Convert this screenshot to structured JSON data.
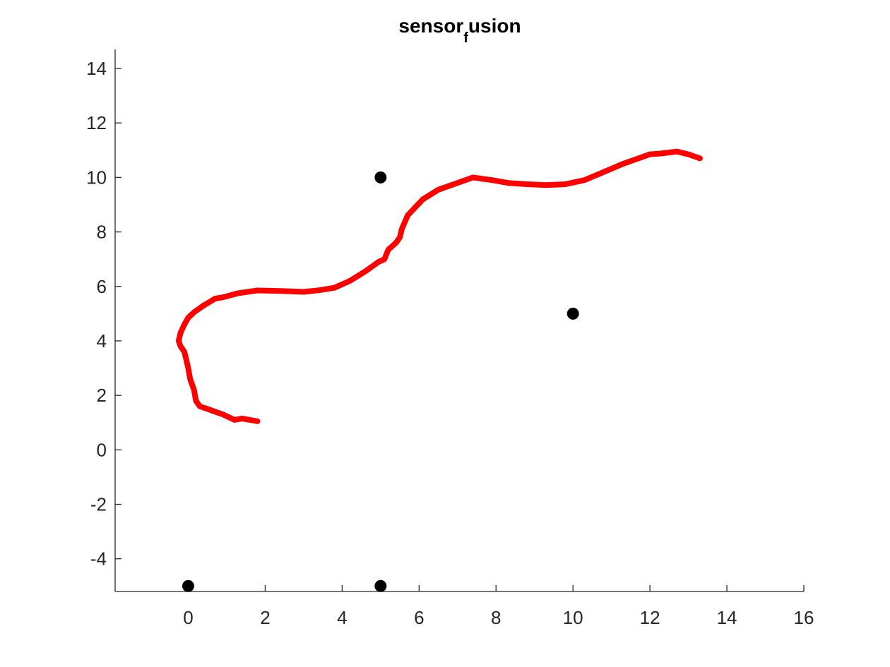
{
  "chart_data": {
    "type": "scatter",
    "title_main": "sensor",
    "title_sub": "f",
    "title_tail": "usion",
    "xlim": [
      -1.9,
      16
    ],
    "ylim": [
      -5.2,
      14.7
    ],
    "xticks": [
      0,
      2,
      4,
      6,
      8,
      10,
      12,
      14,
      16
    ],
    "yticks": [
      -4,
      -2,
      0,
      2,
      4,
      6,
      8,
      10,
      12,
      14
    ],
    "grid": false,
    "series": [
      {
        "kind": "line",
        "color": "#ff0000",
        "x": [
          1.8,
          1.6,
          1.4,
          1.2,
          1.05,
          0.9,
          0.7,
          0.5,
          0.3,
          0.2,
          0.15,
          0.05,
          0.0,
          -0.05,
          -0.1,
          -0.2,
          -0.25,
          -0.2,
          -0.1,
          0.0,
          0.15,
          0.4,
          0.7,
          0.9,
          1.3,
          1.8,
          2.4,
          3.0,
          3.4,
          3.8,
          4.2,
          4.6,
          4.95,
          5.1,
          5.2,
          5.4,
          5.5,
          5.55,
          5.7,
          5.9,
          6.1,
          6.5,
          7.0,
          7.4,
          7.9,
          8.3,
          8.8,
          9.3,
          9.8,
          10.3,
          10.8,
          11.3,
          11.7,
          12.0,
          12.3,
          12.7,
          13.0,
          13.3
        ],
        "y": [
          1.05,
          1.1,
          1.15,
          1.1,
          1.2,
          1.3,
          1.4,
          1.5,
          1.6,
          1.8,
          2.2,
          2.6,
          3.0,
          3.3,
          3.6,
          3.8,
          4.0,
          4.3,
          4.6,
          4.85,
          5.05,
          5.3,
          5.55,
          5.6,
          5.75,
          5.85,
          5.83,
          5.8,
          5.86,
          5.95,
          6.2,
          6.55,
          6.9,
          7.0,
          7.35,
          7.6,
          7.8,
          8.1,
          8.6,
          8.9,
          9.2,
          9.55,
          9.8,
          10.0,
          9.9,
          9.8,
          9.75,
          9.72,
          9.75,
          9.9,
          10.2,
          10.5,
          10.7,
          10.85,
          10.88,
          10.95,
          10.85,
          10.7
        ]
      },
      {
        "kind": "points",
        "color": "#000000",
        "x": [
          5,
          10,
          0,
          5
        ],
        "y": [
          10,
          5,
          -5,
          -5
        ]
      }
    ]
  }
}
